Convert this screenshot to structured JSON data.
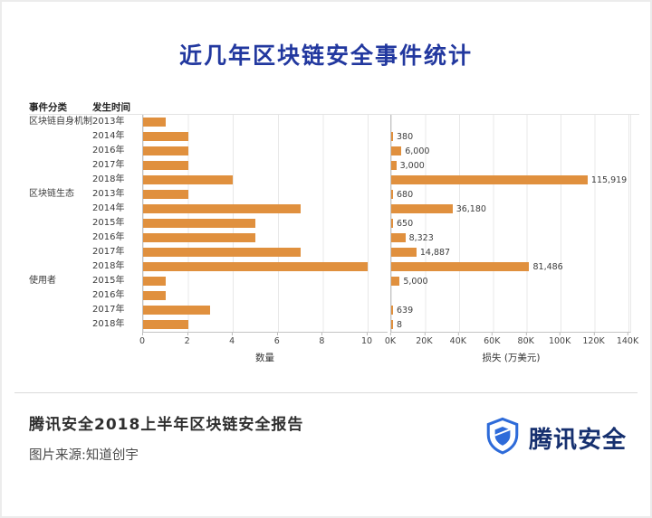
{
  "title": "近几年区块链安全事件统计",
  "headers": {
    "category": "事件分类",
    "time": "发生时间"
  },
  "chart_data": {
    "type": "bar",
    "title": "近几年区块链安全事件统计",
    "grid": true,
    "panels": [
      {
        "axis_title": "数量",
        "xlim": [
          0,
          10
        ],
        "ticks": [
          "0",
          "2",
          "4",
          "6",
          "8",
          "10"
        ]
      },
      {
        "axis_title": "损失 (万美元)",
        "xlim": [
          0,
          140000
        ],
        "ticks": [
          "0K",
          "20K",
          "40K",
          "60K",
          "80K",
          "100K",
          "120K",
          "140K"
        ]
      }
    ],
    "groups": [
      {
        "category": "区块链自身机制",
        "rows": [
          {
            "year": "2013年",
            "count": 1,
            "loss": null,
            "loss_label": ""
          },
          {
            "year": "2014年",
            "count": 2,
            "loss": 380,
            "loss_label": "380"
          },
          {
            "year": "2016年",
            "count": 2,
            "loss": 6000,
            "loss_label": "6,000"
          },
          {
            "year": "2017年",
            "count": 2,
            "loss": 3000,
            "loss_label": "3,000"
          },
          {
            "year": "2018年",
            "count": 4,
            "loss": 115919,
            "loss_label": "115,919"
          }
        ]
      },
      {
        "category": "区块链生态",
        "rows": [
          {
            "year": "2013年",
            "count": 2,
            "loss": 680,
            "loss_label": "680"
          },
          {
            "year": "2014年",
            "count": 7,
            "loss": 36180,
            "loss_label": "36,180"
          },
          {
            "year": "2015年",
            "count": 5,
            "loss": 650,
            "loss_label": "650"
          },
          {
            "year": "2016年",
            "count": 5,
            "loss": 8323,
            "loss_label": "8,323"
          },
          {
            "year": "2017年",
            "count": 7,
            "loss": 14887,
            "loss_label": "14,887"
          },
          {
            "year": "2018年",
            "count": 10,
            "loss": 81486,
            "loss_label": "81,486"
          }
        ]
      },
      {
        "category": "使用者",
        "rows": [
          {
            "year": "2015年",
            "count": 1,
            "loss": 5000,
            "loss_label": "5,000"
          },
          {
            "year": "2016年",
            "count": 1,
            "loss": null,
            "loss_label": ""
          },
          {
            "year": "2017年",
            "count": 3,
            "loss": 639,
            "loss_label": "639"
          },
          {
            "year": "2018年",
            "count": 2,
            "loss": 8,
            "loss_label": "8"
          }
        ]
      }
    ]
  },
  "footer": {
    "report_title": "腾讯安全2018上半年区块链安全报告",
    "source": "图片来源:知道创宇",
    "brand": "腾讯安全"
  },
  "colors": {
    "title": "#22389F",
    "bar": "#E0903E",
    "brand_text": "#16306F",
    "shield": "#2E6BD9"
  }
}
